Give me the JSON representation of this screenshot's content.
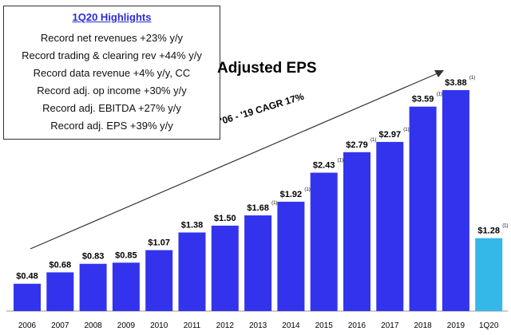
{
  "highlights": {
    "title": "1Q20 Highlights",
    "items": [
      "Record net revenues +23% y/y",
      "Record trading & clearing rev +44% y/y",
      "Record data revenue +4% y/y, CC",
      "Record adj. op income +30% y/y",
      "Record adj. EBITDA +27% y/y",
      "Record adj. EPS +39% y/y"
    ]
  },
  "cagr_label": "'06 - '19 CAGR 17%",
  "colors": {
    "annual_bar": "#3333ee",
    "quarter_bar": "#33b8e8",
    "highlight_title": "#2b2bd9"
  },
  "chart_data": {
    "type": "bar",
    "title": "Adjusted EPS",
    "categories": [
      "2006",
      "2007",
      "2008",
      "2009",
      "2010",
      "2011",
      "2012",
      "2013",
      "2014",
      "2015",
      "2016",
      "2017",
      "2018",
      "2019",
      "1Q20"
    ],
    "values": [
      0.48,
      0.68,
      0.83,
      0.85,
      1.07,
      1.38,
      1.5,
      1.68,
      1.92,
      2.43,
      2.79,
      2.97,
      3.59,
      3.88,
      1.28
    ],
    "data_labels": [
      "$0.48",
      "$0.68",
      "$0.83",
      "$0.85",
      "$1.07",
      "$1.38",
      "$1.50",
      "$1.68",
      "$1.92",
      "$2.43",
      "$2.79",
      "$2.97",
      "$3.59",
      "$3.88",
      "$1.28"
    ],
    "footnote_marks": [
      "",
      "",
      "",
      "",
      "",
      "",
      "",
      "(1)",
      "(1)",
      "(1)",
      "(1)",
      "(1)",
      "(1)",
      "(1)",
      "(1)"
    ],
    "xlabel": "",
    "ylabel": "",
    "ylim": [
      0,
      4.2
    ],
    "grid": false,
    "legend": "none"
  }
}
